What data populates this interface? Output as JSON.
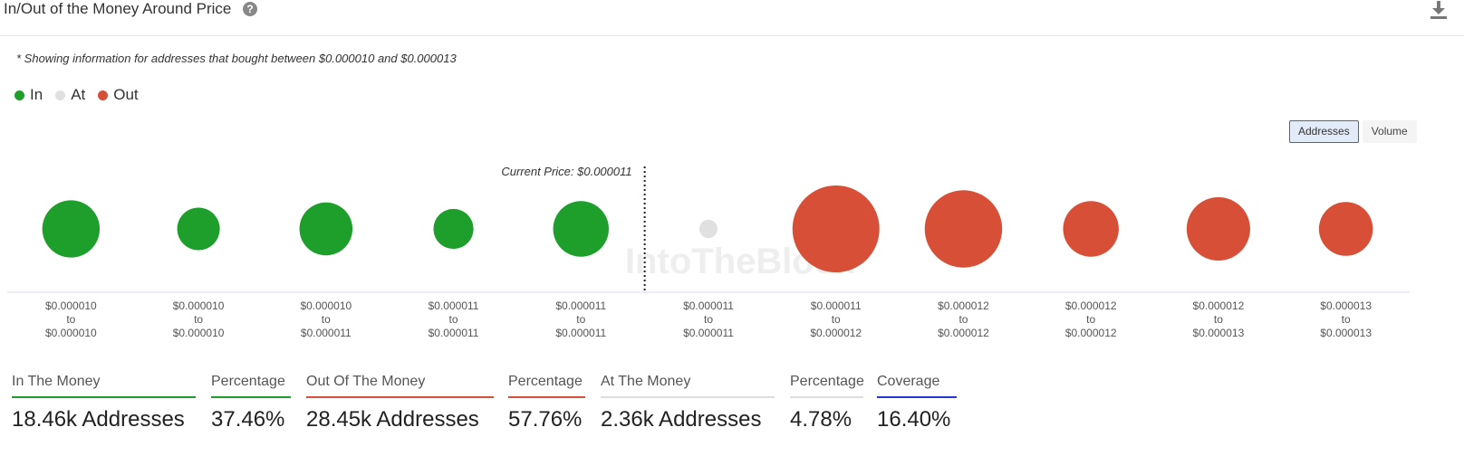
{
  "header": {
    "title": "In/Out of the Money Around Price",
    "help_icon": "?",
    "download_icon": "download-icon"
  },
  "note": "* Showing information for addresses that bought between $0.000010 and $0.000013",
  "legend": [
    {
      "label": "In",
      "color": "#1e9e2a"
    },
    {
      "label": "At",
      "color": "#e0e0e0"
    },
    {
      "label": "Out",
      "color": "#d64f36"
    }
  ],
  "toggle": {
    "addresses": "Addresses",
    "volume": "Volume"
  },
  "chart_data": {
    "type": "bubble",
    "current_price_label": "Current Price: $0.000011",
    "watermark": "IntoTheBlock",
    "colors": {
      "in": "#1e9e2a",
      "at": "#e0e0e0",
      "out": "#d64f36"
    },
    "buckets": [
      {
        "from": "$0.000010",
        "to": "$0.000010",
        "status": "in",
        "relative_size": 0.66
      },
      {
        "from": "$0.000010",
        "to": "$0.000010",
        "status": "in",
        "relative_size": 0.49
      },
      {
        "from": "$0.000010",
        "to": "$0.000011",
        "status": "in",
        "relative_size": 0.61
      },
      {
        "from": "$0.000011",
        "to": "$0.000011",
        "status": "in",
        "relative_size": 0.46
      },
      {
        "from": "$0.000011",
        "to": "$0.000011",
        "status": "in",
        "relative_size": 0.64
      },
      {
        "from": "$0.000011",
        "to": "$0.000011",
        "status": "at",
        "relative_size": 0.21
      },
      {
        "from": "$0.000011",
        "to": "$0.000012",
        "status": "out",
        "relative_size": 1.0
      },
      {
        "from": "$0.000012",
        "to": "$0.000012",
        "status": "out",
        "relative_size": 0.89
      },
      {
        "from": "$0.000012",
        "to": "$0.000012",
        "status": "out",
        "relative_size": 0.64
      },
      {
        "from": "$0.000012",
        "to": "$0.000013",
        "status": "out",
        "relative_size": 0.73
      },
      {
        "from": "$0.000013",
        "to": "$0.000013",
        "status": "out",
        "relative_size": 0.62
      }
    ],
    "to_word": "to",
    "current_price_after_index": 4
  },
  "stats": [
    {
      "label": "In The Money",
      "value": "18.46k Addresses",
      "color": "#1e9e2a"
    },
    {
      "label": "Percentage",
      "value": "37.46%",
      "color": "#1e9e2a"
    },
    {
      "label": "Out Of The Money",
      "value": "28.45k Addresses",
      "color": "#d64f36"
    },
    {
      "label": "Percentage",
      "value": "57.76%",
      "color": "#d64f36"
    },
    {
      "label": "At The Money",
      "value": "2.36k Addresses",
      "color": "#dddddd"
    },
    {
      "label": "Percentage",
      "value": "4.78%",
      "color": "#dddddd"
    },
    {
      "label": "Coverage",
      "value": "16.40%",
      "color": "#2236d6"
    }
  ]
}
